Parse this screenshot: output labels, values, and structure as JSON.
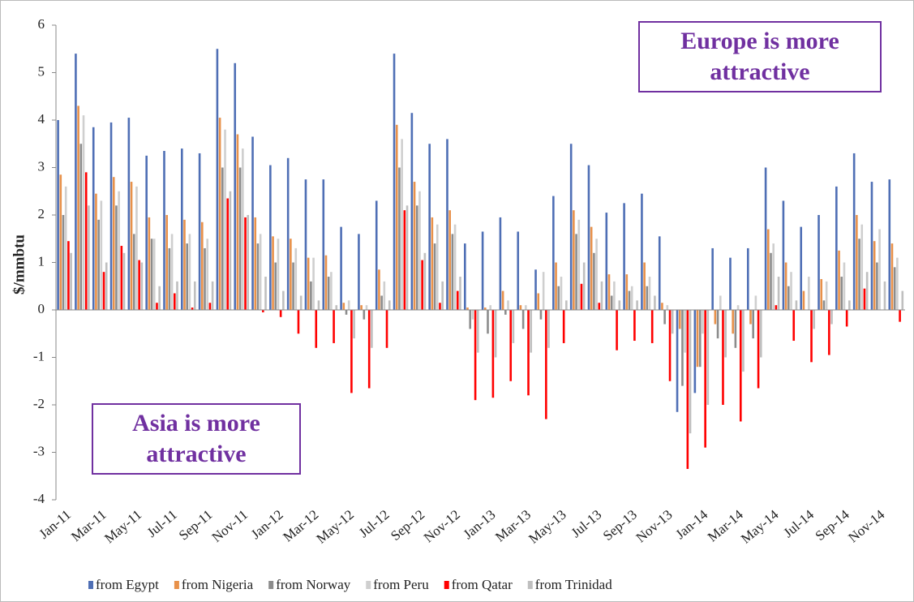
{
  "chart_data": {
    "type": "bar",
    "y_label": "$/mmbtu",
    "annotations": [
      "Europe is more attractive",
      "Asia is more attractive"
    ],
    "categories": [
      "Jan-11",
      null,
      "Mar-11",
      null,
      "May-11",
      null,
      "Jul-11",
      null,
      "Sep-11",
      null,
      "Nov-11",
      null,
      "Jan-12",
      null,
      "Mar-12",
      null,
      "May-12",
      null,
      "Jul-12",
      null,
      "Sep-12",
      null,
      "Nov-12",
      null,
      "Jan-13",
      null,
      "Mar-13",
      null,
      "May-13",
      null,
      "Jul-13",
      null,
      "Sep-13",
      null,
      "Nov-13",
      null,
      "Jan-14",
      null,
      "Mar-14",
      null,
      "May-14",
      null,
      "Jul-14",
      null,
      "Sep-14",
      null,
      "Nov-14",
      null
    ],
    "series": [
      {
        "name": "from Egypt",
        "color": "#4f6fb5",
        "values": [
          4.0,
          5.4,
          3.85,
          3.95,
          4.05,
          3.25,
          3.35,
          3.4,
          3.3,
          5.5,
          5.2,
          3.65,
          3.05,
          3.2,
          2.75,
          2.75,
          1.75,
          1.6,
          2.3,
          5.4,
          4.15,
          3.5,
          3.6,
          1.4,
          1.65,
          1.95,
          1.65,
          0.85,
          2.4,
          3.5,
          3.05,
          2.05,
          2.25,
          2.45,
          1.55,
          -2.15,
          -1.75,
          1.3,
          1.1,
          1.3,
          3.0,
          2.3,
          1.75,
          2.0,
          2.6,
          3.3,
          2.7,
          2.75
        ]
      },
      {
        "name": "from Nigeria",
        "color": "#e8914a",
        "values": [
          2.85,
          4.3,
          2.45,
          2.8,
          2.7,
          1.95,
          2.0,
          1.9,
          1.85,
          4.05,
          3.7,
          1.95,
          1.55,
          1.5,
          1.1,
          1.15,
          0.15,
          0.1,
          0.85,
          3.9,
          2.7,
          1.95,
          2.1,
          0.05,
          0.05,
          0.4,
          0.1,
          0.35,
          1.0,
          2.1,
          1.75,
          0.75,
          0.75,
          1.0,
          0.15,
          -0.4,
          -1.2,
          -0.3,
          -0.5,
          -0.3,
          1.7,
          1.0,
          0.4,
          0.65,
          1.25,
          2.0,
          1.45,
          1.4
        ]
      },
      {
        "name": "from Norway",
        "color": "#8c8c8c",
        "values": [
          2.0,
          3.5,
          1.9,
          2.2,
          1.6,
          1.5,
          1.3,
          1.4,
          1.3,
          3.0,
          3.0,
          1.4,
          1.0,
          1.0,
          0.6,
          0.7,
          -0.1,
          -0.2,
          0.3,
          3.0,
          2.2,
          1.4,
          1.6,
          -0.4,
          -0.5,
          -0.1,
          -0.4,
          -0.2,
          0.5,
          1.6,
          1.2,
          0.3,
          0.4,
          0.5,
          -0.3,
          -1.6,
          -1.2,
          -0.6,
          -0.8,
          -0.6,
          1.2,
          0.5,
          0.0,
          0.2,
          0.7,
          1.5,
          1.0,
          0.9
        ]
      },
      {
        "name": "from Peru",
        "color": "#cfcfcf",
        "values": [
          2.6,
          4.1,
          2.3,
          2.5,
          2.6,
          1.5,
          1.6,
          1.6,
          1.5,
          3.8,
          3.4,
          1.6,
          1.5,
          1.3,
          1.1,
          0.8,
          0.2,
          0.1,
          0.6,
          3.6,
          2.5,
          1.8,
          1.8,
          -0.2,
          0.1,
          0.2,
          0.1,
          0.8,
          0.7,
          1.9,
          1.5,
          0.6,
          0.5,
          0.7,
          0.1,
          -0.9,
          -0.5,
          0.3,
          0.1,
          0.3,
          1.4,
          0.8,
          0.7,
          0.6,
          1.0,
          1.8,
          1.7,
          1.1
        ]
      },
      {
        "name": "from Qatar",
        "color": "#ff0000",
        "values": [
          1.45,
          2.9,
          0.8,
          1.35,
          1.05,
          0.15,
          0.35,
          0.05,
          0.15,
          2.35,
          1.95,
          -0.05,
          -0.15,
          -0.5,
          -0.8,
          -0.7,
          -1.75,
          -1.65,
          -0.8,
          2.1,
          1.05,
          0.15,
          0.4,
          -1.9,
          -1.85,
          -1.5,
          -1.8,
          -2.3,
          -0.7,
          0.55,
          0.15,
          -0.85,
          -0.65,
          -0.7,
          -1.5,
          -3.35,
          -2.9,
          -2.0,
          -2.35,
          -1.65,
          0.1,
          -0.65,
          -1.1,
          -0.95,
          -0.35,
          0.45,
          0.0,
          -0.25
        ]
      },
      {
        "name": "from Trinidad",
        "color": "#bfbfbf",
        "values": [
          1.2,
          2.2,
          1.0,
          1.2,
          1.0,
          0.5,
          0.6,
          0.6,
          0.6,
          2.5,
          2.0,
          0.7,
          0.4,
          0.3,
          0.2,
          0.1,
          -0.6,
          -0.8,
          0.2,
          2.2,
          1.2,
          0.6,
          0.7,
          -0.9,
          -1.0,
          -0.7,
          -0.9,
          -0.8,
          0.2,
          1.0,
          0.6,
          0.2,
          0.2,
          0.3,
          -0.5,
          -2.6,
          -2.0,
          -1.0,
          -1.3,
          -1.0,
          0.7,
          0.2,
          -0.4,
          -0.3,
          0.2,
          0.8,
          0.6,
          0.4
        ]
      }
    ],
    "ylim": [
      -4,
      6
    ],
    "yticks": [
      -4,
      -3,
      -2,
      -1,
      0,
      1,
      2,
      3,
      4,
      5,
      6
    ],
    "grid": false,
    "legend": "bottom"
  }
}
